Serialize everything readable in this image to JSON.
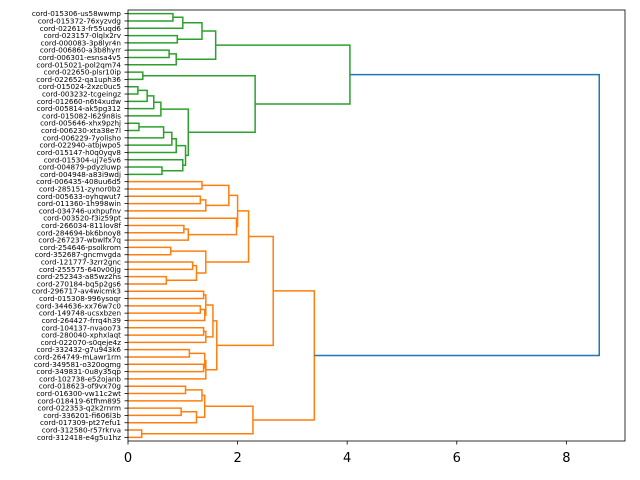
{
  "chart_data": {
    "type": "dendrogram",
    "orientation": "horizontal",
    "xlim": [
      0,
      9.07
    ],
    "xticks": [
      0,
      2,
      4,
      6,
      8
    ],
    "xtick_labels": [
      "0",
      "2",
      "4",
      "6",
      "8"
    ],
    "colors": {
      "green": "#2ca02c",
      "orange": "#ff7f0e",
      "blue": "#1f77b4"
    },
    "labels": [
      "cord-015306-us58wwmp",
      "cord-015372-76xyzvdg",
      "cord-022613-fr55uqd6",
      "cord-023157-0lqlx2rv",
      "cord-000083-3p8lyr4n",
      "cord-006860-a3b8hyrr",
      "cord-006301-esnsa4v5",
      "cord-015021-pol2qm74",
      "cord-022650-plsr10ip",
      "cord-022652-qa1uph36",
      "cord-015024-2xzc0uc5",
      "cord-003232-tcgeingz",
      "cord-012660-n6t4xudw",
      "cord-005814-ak5pg312",
      "cord-015082-l629n8is",
      "cord-005646-xhx9pzhj",
      "cord-006230-xta38e7l",
      "cord-006229-7yolisho",
      "cord-022940-atbjwpo5",
      "cord-015147-h0q0yqv8",
      "cord-015304-uj7e5v6",
      "cord-004879-pdyzluwp",
      "cord-004948-a83i9wdj",
      "cord-006435-408uu6d5",
      "cord-285151-zynor0b2",
      "cord-005633-oyhqwut7",
      "cord-011360-1h998win",
      "cord-034746-uxhpufnv",
      "cord-003520-f3iz59pt",
      "cord-266034-811lov8f",
      "cord-284694-bk6bnoy8",
      "cord-267237-wbwlfx7q",
      "cord-254646-psolkrom",
      "cord-352687-gncmvgda",
      "cord-121777-3zrr2gnc",
      "cord-255575-640v00jg",
      "cord-252343-a85wz2hs",
      "cord-270184-bq5p2gs6",
      "cord-296717-av4wicmk3",
      "cord-015308-996ysoqr",
      "cord-344636-xx76w7c0",
      "cord-149748-ucsxbzen",
      "cord-264427-frrq4h39",
      "cord-104137-nvaoo73",
      "cord-280040-xphxlaqt",
      "cord-022070-s0qeje4z",
      "cord-332432-g7u943k6",
      "cord-264749-mLawr1rm",
      "cord-349581-o320ogmg",
      "cord-349831-0u8y35qp",
      "cord-102738-e52ojanb",
      "cord-018623-of9vx70g",
      "cord-016300-vw11c2wt",
      "cord-018419-6tfhm895",
      "cord-022353-q2k2rnrm",
      "cord-336201-fi606l3b",
      "cord-017309-pt27efu1",
      "cord-312580-r57rkrva",
      "cord-312418-e4g5u1hz"
    ],
    "nodes": {
      "n0": {
        "children": [
          "L0",
          "L1"
        ],
        "height": 0.82,
        "color": "green"
      },
      "n1": {
        "children": [
          "n0",
          "L2"
        ],
        "height": 1.0,
        "color": "green"
      },
      "n2": {
        "children": [
          "L3",
          "L4"
        ],
        "height": 0.9,
        "color": "green"
      },
      "n3": {
        "children": [
          "n1",
          "n2"
        ],
        "height": 1.35,
        "color": "green"
      },
      "n4": {
        "children": [
          "L5",
          "L6"
        ],
        "height": 0.75,
        "color": "green"
      },
      "n5": {
        "children": [
          "n4",
          "L7"
        ],
        "height": 0.88,
        "color": "green"
      },
      "n6": {
        "children": [
          "n3",
          "n5"
        ],
        "height": 1.6,
        "color": "green"
      },
      "n7": {
        "children": [
          "L8",
          "L9"
        ],
        "height": 0.27,
        "color": "green"
      },
      "n8": {
        "children": [
          "L10",
          "L11"
        ],
        "height": 0.18,
        "color": "green"
      },
      "n9": {
        "children": [
          "n8",
          "L12"
        ],
        "height": 0.35,
        "color": "green"
      },
      "n10": {
        "children": [
          "n9",
          "L13"
        ],
        "height": 0.47,
        "color": "green"
      },
      "n11": {
        "children": [
          "n10",
          "L14"
        ],
        "height": 0.6,
        "color": "green"
      },
      "n12": {
        "children": [
          "L15",
          "L16"
        ],
        "height": 0.2,
        "color": "green"
      },
      "n13": {
        "children": [
          "n12",
          "L17"
        ],
        "height": 0.65,
        "color": "green"
      },
      "n14": {
        "children": [
          "n13",
          "L18"
        ],
        "height": 0.8,
        "color": "green"
      },
      "n15": {
        "children": [
          "n14",
          "L19"
        ],
        "height": 0.88,
        "color": "green"
      },
      "n16": {
        "children": [
          "L21",
          "L22"
        ],
        "height": 0.62,
        "color": "green"
      },
      "n17": {
        "children": [
          "L20",
          "n16"
        ],
        "height": 1.0,
        "color": "green"
      },
      "n18": {
        "children": [
          "n15",
          "n17"
        ],
        "height": 1.05,
        "color": "green"
      },
      "n19": {
        "children": [
          "n11",
          "n18"
        ],
        "height": 1.1,
        "color": "green"
      },
      "n20": {
        "children": [
          "n7",
          "n19"
        ],
        "height": 2.32,
        "color": "green"
      },
      "n21": {
        "children": [
          "n6",
          "n20"
        ],
        "height": 4.05,
        "color": "green"
      },
      "n22": {
        "children": [
          "L23",
          "L24"
        ],
        "height": 1.35,
        "color": "orange"
      },
      "n23": {
        "children": [
          "L25",
          "L26"
        ],
        "height": 1.32,
        "color": "orange"
      },
      "n24": {
        "children": [
          "n23",
          "L27"
        ],
        "height": 1.42,
        "color": "orange"
      },
      "n25": {
        "children": [
          "n22",
          "n24"
        ],
        "height": 1.84,
        "color": "orange"
      },
      "n26": {
        "children": [
          "L29",
          "L30"
        ],
        "height": 1.02,
        "color": "orange"
      },
      "n27": {
        "children": [
          "n26",
          "L31"
        ],
        "height": 1.1,
        "color": "orange"
      },
      "n28": {
        "children": [
          "L28",
          "n27"
        ],
        "height": 1.98,
        "color": "orange"
      },
      "n29": {
        "children": [
          "n25",
          "n28"
        ],
        "height": 2.0,
        "color": "orange"
      },
      "n30": {
        "children": [
          "L32",
          "L33"
        ],
        "height": 0.78,
        "color": "orange"
      },
      "n31": {
        "children": [
          "L34",
          "L35"
        ],
        "height": 1.18,
        "color": "orange"
      },
      "n32": {
        "children": [
          "L36",
          "L37"
        ],
        "height": 0.7,
        "color": "orange"
      },
      "n33": {
        "children": [
          "n31",
          "n32"
        ],
        "height": 1.25,
        "color": "orange"
      },
      "n34": {
        "children": [
          "n30",
          "n33"
        ],
        "height": 1.42,
        "color": "orange"
      },
      "n35": {
        "children": [
          "n34",
          "n29"
        ],
        "height": 2.2,
        "color": "orange"
      },
      "n36": {
        "children": [
          "L38",
          "L39"
        ],
        "height": 1.38,
        "color": "orange"
      },
      "n37": {
        "children": [
          "L40",
          "L41"
        ],
        "height": 1.32,
        "color": "orange"
      },
      "n38": {
        "children": [
          "n37",
          "L42"
        ],
        "height": 1.4,
        "color": "orange"
      },
      "n39": {
        "children": [
          "n36",
          "n38"
        ],
        "height": 1.42,
        "color": "orange"
      },
      "n40": {
        "children": [
          "L43",
          "L44"
        ],
        "height": 1.38,
        "color": "orange"
      },
      "n41": {
        "children": [
          "n40",
          "L45"
        ],
        "height": 1.42,
        "color": "orange"
      },
      "n42": {
        "children": [
          "n39",
          "n41"
        ],
        "height": 1.55,
        "color": "orange"
      },
      "n43": {
        "children": [
          "L46",
          "L47"
        ],
        "height": 1.12,
        "color": "orange"
      },
      "n44": {
        "children": [
          "L48",
          "L49"
        ],
        "height": 1.38,
        "color": "orange"
      },
      "n45": {
        "children": [
          "n43",
          "n44"
        ],
        "height": 1.4,
        "color": "orange"
      },
      "n46": {
        "children": [
          "n45",
          "L50"
        ],
        "height": 1.42,
        "color": "orange"
      },
      "n47": {
        "children": [
          "n42",
          "n46"
        ],
        "height": 1.62,
        "color": "orange"
      },
      "n48": {
        "children": [
          "n35",
          "n47"
        ],
        "height": 2.65,
        "color": "orange"
      },
      "n49": {
        "children": [
          "L51",
          "L52"
        ],
        "height": 1.05,
        "color": "orange"
      },
      "n50": {
        "children": [
          "n49",
          "L53"
        ],
        "height": 1.35,
        "color": "orange"
      },
      "n51": {
        "children": [
          "L54",
          "L55"
        ],
        "height": 0.97,
        "color": "orange"
      },
      "n52": {
        "children": [
          "n51",
          "L56"
        ],
        "height": 1.25,
        "color": "orange"
      },
      "n53": {
        "children": [
          "n50",
          "n52"
        ],
        "height": 1.4,
        "color": "orange"
      },
      "n54": {
        "children": [
          "L57",
          "L58"
        ],
        "height": 0.25,
        "color": "orange"
      },
      "n55": {
        "children": [
          "n53",
          "n54"
        ],
        "height": 2.28,
        "color": "orange"
      },
      "n56": {
        "children": [
          "n48",
          "n55"
        ],
        "height": 3.4,
        "color": "orange"
      },
      "n57": {
        "children": [
          "n21",
          "n56"
        ],
        "height": 8.6,
        "color": "blue"
      }
    },
    "root": "n57"
  }
}
